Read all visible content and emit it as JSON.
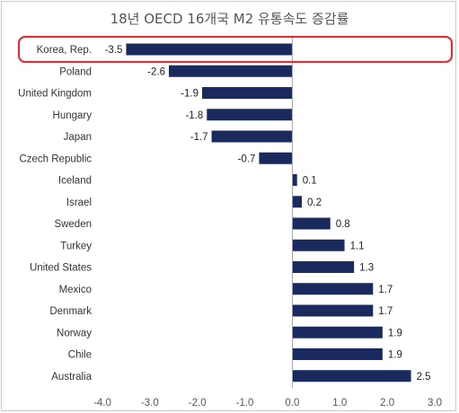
{
  "chart_data": {
    "type": "bar",
    "orientation": "horizontal",
    "title": "18년 OECD 16개국 M2 유통속도 증감률",
    "xlabel": "",
    "ylabel": "",
    "categories": [
      "Korea, Rep.",
      "Poland",
      "United Kingdom",
      "Hungary",
      "Japan",
      "Czech Republic",
      "Iceland",
      "Israel",
      "Sweden",
      "Turkey",
      "United States",
      "Mexico",
      "Denmark",
      "Norway",
      "Chile",
      "Australia"
    ],
    "values": [
      -3.5,
      -2.6,
      -1.9,
      -1.8,
      -1.7,
      -0.7,
      0.1,
      0.2,
      0.8,
      1.1,
      1.3,
      1.7,
      1.7,
      1.9,
      1.9,
      2.5
    ],
    "value_labels": [
      "-3.5",
      "-2.6",
      "-1.9",
      "-1.8",
      "-1.7",
      "-0.7",
      "0.1",
      "0.2",
      "0.8",
      "1.1",
      "1.3",
      "1.7",
      "1.7",
      "1.9",
      "1.9",
      "2.5"
    ],
    "xlim": [
      -4.0,
      3.0
    ],
    "x_ticks": [
      "-4.0",
      "-3.0",
      "-2.0",
      "-1.0",
      "0.0",
      "1.0",
      "2.0",
      "3.0"
    ],
    "grid": false,
    "bar_color": "#1b2a5e",
    "highlight": {
      "category": "Korea, Rep.",
      "border_color": "#d9343b"
    }
  }
}
